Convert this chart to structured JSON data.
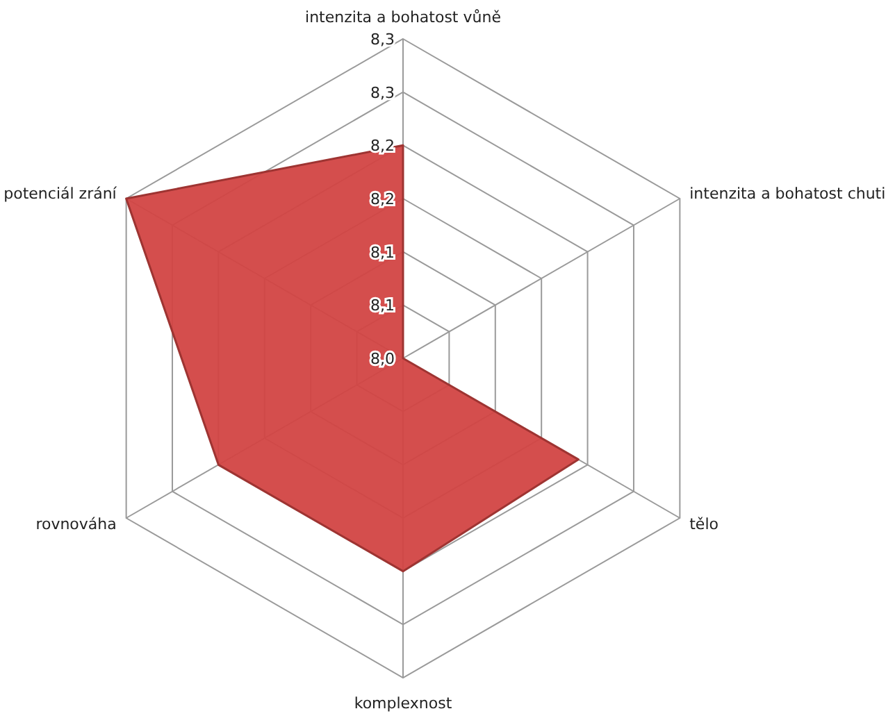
{
  "chart_data": {
    "type": "radar",
    "categories": [
      "intenzita a bohatost vůně",
      "intenzita a bohatost chuti",
      "tělo",
      "komplexnost",
      "rovnováha",
      "potenciál zrání"
    ],
    "series": [
      {
        "color": "#d24543",
        "values": [
          8.2,
          8.0,
          8.19,
          8.2,
          8.2,
          8.3
        ]
      }
    ],
    "ylim": [
      8.0,
      8.3
    ],
    "yticks": [
      {
        "value": 8.0,
        "label": "8,0"
      },
      {
        "value": 8.05,
        "label": "8,1"
      },
      {
        "value": 8.1,
        "label": "8,1"
      },
      {
        "value": 8.15,
        "label": "8,2"
      },
      {
        "value": 8.2,
        "label": "8,2"
      },
      {
        "value": 8.25,
        "label": "8,3"
      },
      {
        "value": 8.3,
        "label": "8,3"
      }
    ],
    "grid": true
  }
}
